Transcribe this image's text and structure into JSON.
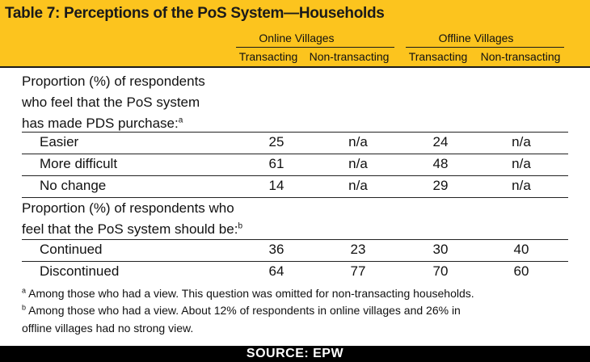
{
  "title": "Table 7: Perceptions of the PoS System—Households",
  "groups": [
    {
      "label": "Online Villages"
    },
    {
      "label": "Offline Villages"
    }
  ],
  "columns": [
    "Transacting",
    "Non-transacting",
    "Transacting",
    "Non-transacting"
  ],
  "sections": [
    {
      "lines": [
        "Proportion (%) of respondents",
        "who feel that the PoS system",
        "has made PDS purchase:"
      ],
      "note_mark": "a",
      "rows": [
        {
          "label": "Easier",
          "values": [
            "25",
            "n/a",
            "24",
            "n/a"
          ]
        },
        {
          "label": "More difficult",
          "values": [
            "61",
            "n/a",
            "48",
            "n/a"
          ]
        },
        {
          "label": "No change",
          "values": [
            "14",
            "n/a",
            "29",
            "n/a"
          ]
        }
      ]
    },
    {
      "lines": [
        "Proportion (%) of respondents who",
        "feel that the PoS system should be:"
      ],
      "note_mark": "b",
      "rows": [
        {
          "label": "Continued",
          "values": [
            "36",
            "23",
            "30",
            "40"
          ]
        },
        {
          "label": "Discontinued",
          "values": [
            "64",
            "77",
            "70",
            "60"
          ]
        }
      ]
    }
  ],
  "footnotes": [
    {
      "mark": "a",
      "text": "Among those who had a view. This question was omitted for non-transacting households."
    },
    {
      "mark": "b",
      "text": "Among those who had a view. About 12% of respondents in online villages and 26% in",
      "text2": "offline villages had no strong view."
    }
  ],
  "source": "SOURCE: EPW"
}
